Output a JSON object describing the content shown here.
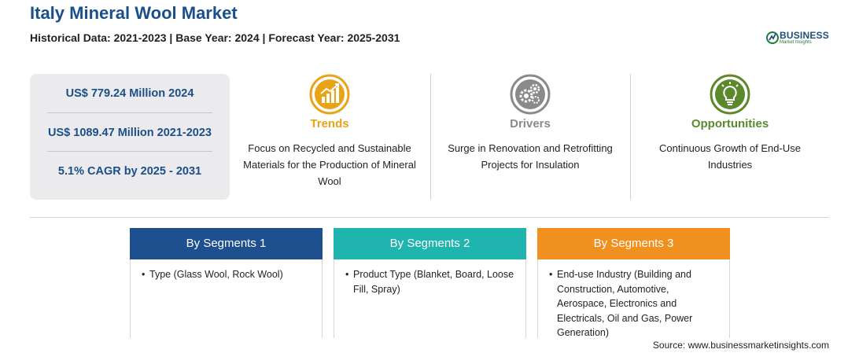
{
  "header": {
    "title": "Italy Mineral Wool Market",
    "subtitle": "Historical Data: 2021-2023 | Base Year: 2024 | Forecast Year: 2025-2031"
  },
  "logo": {
    "main": "BUSINESS",
    "sub": "Market Insights"
  },
  "stats": [
    "US$ 779.24 Million 2024",
    "US$ 1089.47 Million 2021-2023",
    "5.1% CAGR by 2025 - 2031"
  ],
  "columns": {
    "trends": {
      "heading": "Trends",
      "desc": "Focus on Recycled and Sustainable Materials for the Production of Mineral Wool",
      "color": "#e8a317"
    },
    "drivers": {
      "heading": "Drivers",
      "desc": "Surge in Renovation and Retrofitting Projects for Insulation",
      "color": "#8a8a8a"
    },
    "opportunities": {
      "heading": "Opportunities",
      "desc": "Continuous Growth of End-Use Industries",
      "color": "#5a8a2b"
    }
  },
  "segments": [
    {
      "title": "By Segments 1",
      "color": "#1e4f8f",
      "items": [
        "Type (Glass Wool, Rock Wool)"
      ]
    },
    {
      "title": "By Segments 2",
      "color": "#1fb5ae",
      "items": [
        "Product Type (Blanket, Board, Loose Fill, Spray)"
      ]
    },
    {
      "title": "By Segments 3",
      "color": "#f0901e",
      "items": [
        "End-use Industry (Building and Construction, Automotive, Aerospace, Electronics and Electricals, Oil and Gas, Power Generation)"
      ]
    }
  ],
  "footer": {
    "source": "Source: www.businessmarketinsights.com"
  }
}
